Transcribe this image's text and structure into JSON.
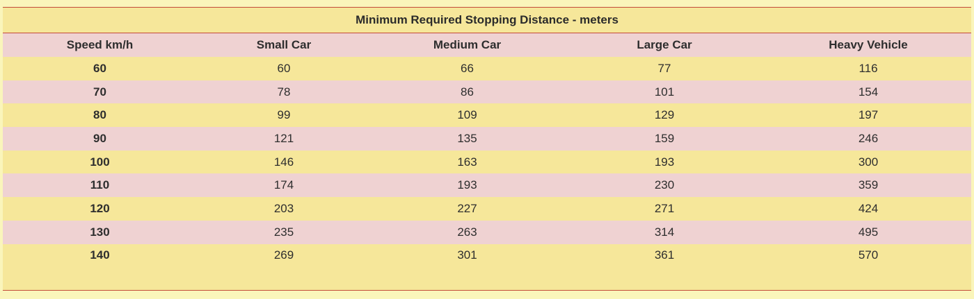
{
  "table": {
    "title": "Minimum Required Stopping Distance - meters",
    "headers": [
      "Speed km/h",
      "Small Car",
      "Medium Car",
      "Large Car",
      "Heavy Vehicle"
    ],
    "rows": [
      [
        "60",
        "60",
        "66",
        "77",
        "116"
      ],
      [
        "70",
        "78",
        "86",
        "101",
        "154"
      ],
      [
        "80",
        "99",
        "109",
        "129",
        "197"
      ],
      [
        "90",
        "121",
        "135",
        "159",
        "246"
      ],
      [
        "100",
        "146",
        "163",
        "193",
        "300"
      ],
      [
        "110",
        "174",
        "193",
        "230",
        "359"
      ],
      [
        "120",
        "203",
        "227",
        "271",
        "424"
      ],
      [
        "130",
        "235",
        "263",
        "314",
        "495"
      ],
      [
        "140",
        "269",
        "301",
        "361",
        "570"
      ]
    ]
  },
  "colors": {
    "yellow_row": "#f6e79a",
    "pink_row": "#efd2d2",
    "border_red": "#c24a3a",
    "page_background": "#faf5bb"
  }
}
